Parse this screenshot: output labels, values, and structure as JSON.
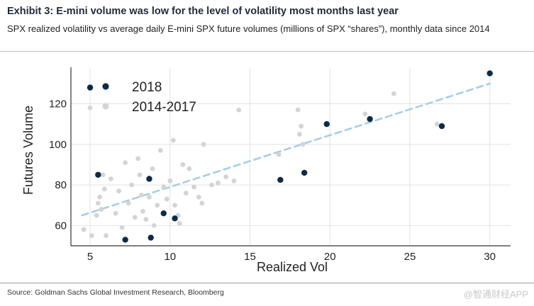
{
  "header": {
    "title": "Exhibit 3: E-mini volume was low for the level of volatility most months last year",
    "subtitle": "SPX realized volatility vs average daily E-mini SPX future volumes (millions of SPX “shares”), monthly data since 2014"
  },
  "footer": {
    "source": "Source: Goldman Sachs Global Investment Research, Bloomberg",
    "watermark": "@智通财经APP"
  },
  "colors": {
    "series_2018": "#0d2b45",
    "series_2014_2017": "#d4d4d4",
    "trend": "#a8cde6",
    "grid": "#e3e3e3",
    "axis": "#333333"
  },
  "chart_data": {
    "type": "scatter",
    "xlabel": "Realized Vol",
    "ylabel": "Futures Volume",
    "xlim": [
      3.8,
      31.3
    ],
    "ylim": [
      50,
      138
    ],
    "xticks": [
      5,
      10,
      15,
      20,
      25,
      30
    ],
    "yticks": [
      60,
      80,
      100,
      120
    ],
    "grid": true,
    "legend_position": "top-left",
    "series": [
      {
        "name": "2018",
        "color": "#0d2b45",
        "points": [
          [
            5.0,
            128
          ],
          [
            5.5,
            85
          ],
          [
            7.2,
            53
          ],
          [
            8.8,
            54
          ],
          [
            8.7,
            83
          ],
          [
            9.6,
            66
          ],
          [
            10.3,
            63.5
          ],
          [
            16.9,
            82.5
          ],
          [
            18.4,
            86
          ],
          [
            19.8,
            110
          ],
          [
            22.5,
            112.5
          ],
          [
            27.0,
            109
          ],
          [
            30.0,
            135
          ]
        ]
      },
      {
        "name": "2014-2017",
        "color": "#d4d4d4",
        "points": [
          [
            4.6,
            58
          ],
          [
            5.0,
            118
          ],
          [
            5.1,
            55
          ],
          [
            5.4,
            65
          ],
          [
            5.5,
            71
          ],
          [
            5.6,
            74
          ],
          [
            5.7,
            68
          ],
          [
            5.8,
            85
          ],
          [
            5.9,
            78
          ],
          [
            6.0,
            55
          ],
          [
            6.3,
            83
          ],
          [
            6.6,
            66
          ],
          [
            6.8,
            77
          ],
          [
            7.0,
            59
          ],
          [
            7.2,
            91
          ],
          [
            7.4,
            71
          ],
          [
            7.6,
            80
          ],
          [
            7.8,
            64
          ],
          [
            8.0,
            93
          ],
          [
            8.1,
            85
          ],
          [
            8.2,
            75
          ],
          [
            8.3,
            67
          ],
          [
            8.5,
            63
          ],
          [
            8.7,
            74
          ],
          [
            8.9,
            88
          ],
          [
            9.0,
            60
          ],
          [
            9.2,
            70
          ],
          [
            9.4,
            97
          ],
          [
            9.6,
            79
          ],
          [
            9.8,
            73
          ],
          [
            10.0,
            82
          ],
          [
            10.2,
            102
          ],
          [
            10.3,
            70
          ],
          [
            10.5,
            65
          ],
          [
            10.6,
            61
          ],
          [
            10.8,
            90
          ],
          [
            11.0,
            76
          ],
          [
            11.2,
            88
          ],
          [
            11.5,
            79
          ],
          [
            11.8,
            74
          ],
          [
            12.0,
            71
          ],
          [
            12.1,
            100
          ],
          [
            12.6,
            80
          ],
          [
            13.0,
            81
          ],
          [
            13.5,
            84
          ],
          [
            14.0,
            82
          ],
          [
            14.3,
            117
          ],
          [
            16.8,
            95
          ],
          [
            18.0,
            117
          ],
          [
            18.2,
            109
          ],
          [
            18.1,
            105
          ],
          [
            18.3,
            100
          ],
          [
            22.2,
            115
          ],
          [
            24.0,
            125
          ],
          [
            26.7,
            110
          ]
        ]
      }
    ],
    "trendline": {
      "style": "dashed",
      "x": [
        4.5,
        30.0
      ],
      "y": [
        65,
        130
      ]
    }
  }
}
